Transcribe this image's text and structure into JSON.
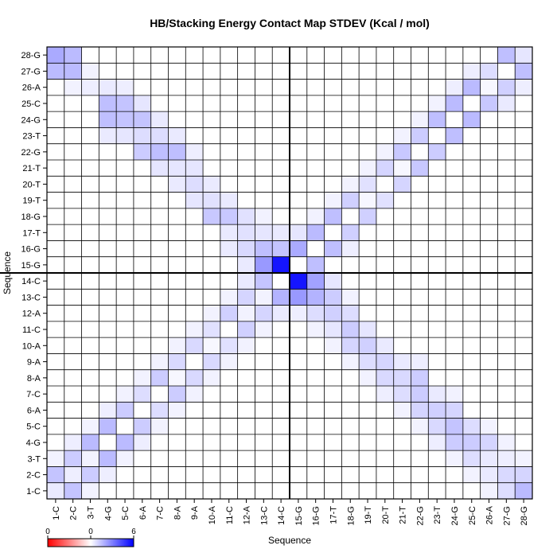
{
  "chart_data": {
    "type": "heatmap",
    "title": "HB/Stacking Energy Contact Map STDEV (Kcal / mol)",
    "xlabel": "Sequence",
    "ylabel": "Sequence",
    "labels": [
      "1-C",
      "2-C",
      "3-T",
      "4-G",
      "5-C",
      "6-A",
      "7-C",
      "8-A",
      "9-A",
      "10-A",
      "11-C",
      "12-A",
      "13-C",
      "14-C",
      "15-G",
      "16-G",
      "17-T",
      "18-G",
      "19-T",
      "20-T",
      "21-T",
      "22-G",
      "23-T",
      "24-G",
      "25-C",
      "26-A",
      "27-G",
      "28-G"
    ],
    "colorbar": {
      "ticks": [
        "0",
        "0",
        "6"
      ],
      "min": 0,
      "max": 6,
      "colors": [
        "#ff0000",
        "#ffffff",
        "#0000ff"
      ]
    },
    "crosshair": {
      "x": 14.5,
      "y": 14.5
    },
    "cells": [
      [
        1,
        1,
        0.5
      ],
      [
        1,
        2,
        1.4
      ],
      [
        1,
        3,
        0.3
      ],
      [
        1,
        27,
        1.6
      ],
      [
        1,
        28,
        2.0
      ],
      [
        2,
        2,
        0.4
      ],
      [
        2,
        1,
        1.4
      ],
      [
        2,
        3,
        1.2
      ],
      [
        2,
        4,
        0.4
      ],
      [
        2,
        26,
        0.3
      ],
      [
        2,
        27,
        1.6
      ],
      [
        2,
        28,
        1.6
      ],
      [
        3,
        1,
        0.3
      ],
      [
        3,
        2,
        1.2
      ],
      [
        3,
        3,
        0.3
      ],
      [
        3,
        4,
        1.6
      ],
      [
        3,
        5,
        0.3
      ],
      [
        3,
        26,
        0.4
      ],
      [
        3,
        27,
        0.3
      ],
      [
        4,
        2,
        0.4
      ],
      [
        4,
        3,
        1.6
      ],
      [
        4,
        5,
        1.6
      ],
      [
        4,
        6,
        0.4
      ],
      [
        4,
        23,
        0.5
      ],
      [
        4,
        24,
        1.5
      ],
      [
        4,
        25,
        1.5
      ],
      [
        4,
        26,
        0.5
      ],
      [
        5,
        3,
        0.3
      ],
      [
        5,
        4,
        1.6
      ],
      [
        5,
        6,
        1.2
      ],
      [
        5,
        7,
        0.3
      ],
      [
        5,
        23,
        0.6
      ],
      [
        5,
        24,
        1.4
      ],
      [
        5,
        25,
        1.4
      ],
      [
        5,
        26,
        0.4
      ],
      [
        6,
        4,
        0.4
      ],
      [
        6,
        5,
        1.2
      ],
      [
        6,
        7,
        0.8
      ],
      [
        6,
        8,
        0.3
      ],
      [
        6,
        22,
        1.2
      ],
      [
        6,
        23,
        0.8
      ],
      [
        6,
        24,
        1.4
      ],
      [
        6,
        25,
        0.6
      ],
      [
        7,
        5,
        0.3
      ],
      [
        7,
        6,
        0.8
      ],
      [
        7,
        8,
        1.2
      ],
      [
        7,
        9,
        0.3
      ],
      [
        7,
        21,
        0.6
      ],
      [
        7,
        22,
        1.5
      ],
      [
        7,
        23,
        0.8
      ],
      [
        7,
        24,
        0.5
      ],
      [
        8,
        6,
        0.3
      ],
      [
        8,
        7,
        1.2
      ],
      [
        8,
        8,
        0.2
      ],
      [
        8,
        9,
        0.9
      ],
      [
        8,
        10,
        0.3
      ],
      [
        8,
        20,
        0.5
      ],
      [
        8,
        21,
        0.6
      ],
      [
        8,
        22,
        1.5
      ],
      [
        8,
        23,
        0.5
      ],
      [
        9,
        7,
        0.3
      ],
      [
        9,
        8,
        0.9
      ],
      [
        9,
        10,
        0.9
      ],
      [
        9,
        11,
        0.3
      ],
      [
        9,
        19,
        0.6
      ],
      [
        9,
        20,
        0.8
      ],
      [
        9,
        21,
        0.6
      ],
      [
        9,
        22,
        0.4
      ],
      [
        10,
        8,
        0.3
      ],
      [
        10,
        9,
        0.9
      ],
      [
        10,
        10,
        0.2
      ],
      [
        10,
        11,
        0.7
      ],
      [
        10,
        12,
        0.3
      ],
      [
        10,
        18,
        1.3
      ],
      [
        10,
        19,
        0.7
      ],
      [
        10,
        20,
        0.5
      ],
      [
        11,
        9,
        0.3
      ],
      [
        11,
        10,
        0.7
      ],
      [
        11,
        12,
        1.1
      ],
      [
        11,
        13,
        0.3
      ],
      [
        11,
        16,
        0.5
      ],
      [
        11,
        17,
        0.5
      ],
      [
        11,
        18,
        1.3
      ],
      [
        11,
        19,
        0.5
      ],
      [
        12,
        10,
        0.3
      ],
      [
        12,
        11,
        1.1
      ],
      [
        12,
        12,
        0.3
      ],
      [
        12,
        13,
        1.0
      ],
      [
        12,
        14,
        0.5
      ],
      [
        12,
        15,
        0.5
      ],
      [
        12,
        16,
        0.9
      ],
      [
        12,
        17,
        0.7
      ],
      [
        12,
        18,
        0.7
      ],
      [
        13,
        11,
        0.3
      ],
      [
        13,
        12,
        1.0
      ],
      [
        13,
        13,
        0.3
      ],
      [
        13,
        14,
        1.4
      ],
      [
        13,
        15,
        2.4
      ],
      [
        13,
        16,
        1.5
      ],
      [
        13,
        17,
        0.6
      ],
      [
        13,
        18,
        0.3
      ],
      [
        14,
        12,
        0.5
      ],
      [
        14,
        13,
        1.8
      ],
      [
        14,
        15,
        5.5
      ],
      [
        14,
        16,
        1.4
      ],
      [
        14,
        17,
        0.5
      ],
      [
        15,
        12,
        0.4
      ],
      [
        15,
        13,
        2.4
      ],
      [
        15,
        14,
        5.5
      ],
      [
        15,
        16,
        2.0
      ],
      [
        15,
        17,
        0.6
      ],
      [
        16,
        11,
        0.3
      ],
      [
        16,
        12,
        0.8
      ],
      [
        16,
        13,
        1.8
      ],
      [
        16,
        14,
        2.2
      ],
      [
        16,
        15,
        1.5
      ],
      [
        16,
        17,
        1.6
      ],
      [
        16,
        18,
        0.3
      ],
      [
        17,
        10,
        0.3
      ],
      [
        17,
        11,
        0.6
      ],
      [
        17,
        12,
        1.1
      ],
      [
        17,
        13,
        1.2
      ],
      [
        17,
        14,
        0.6
      ],
      [
        17,
        16,
        1.5
      ],
      [
        17,
        18,
        1.5
      ],
      [
        17,
        19,
        0.3
      ],
      [
        18,
        9,
        0.3
      ],
      [
        18,
        10,
        1.0
      ],
      [
        18,
        11,
        1.2
      ],
      [
        18,
        12,
        0.8
      ],
      [
        18,
        13,
        0.3
      ],
      [
        18,
        16,
        0.4
      ],
      [
        18,
        17,
        1.1
      ],
      [
        18,
        19,
        1.1
      ],
      [
        18,
        20,
        0.3
      ],
      [
        19,
        8,
        0.3
      ],
      [
        19,
        9,
        0.8
      ],
      [
        19,
        10,
        1.1
      ],
      [
        19,
        11,
        0.6
      ],
      [
        19,
        18,
        1.1
      ],
      [
        19,
        19,
        0.2
      ],
      [
        19,
        20,
        0.7
      ],
      [
        19,
        21,
        0.3
      ],
      [
        20,
        7,
        0.4
      ],
      [
        20,
        8,
        0.9
      ],
      [
        20,
        9,
        1.0
      ],
      [
        20,
        10,
        0.5
      ],
      [
        20,
        19,
        0.7
      ],
      [
        20,
        21,
        1.0
      ],
      [
        20,
        22,
        0.3
      ],
      [
        21,
        6,
        0.3
      ],
      [
        21,
        7,
        0.8
      ],
      [
        21,
        8,
        0.9
      ],
      [
        21,
        9,
        0.5
      ],
      [
        21,
        20,
        1.0
      ],
      [
        21,
        21,
        0.2
      ],
      [
        21,
        22,
        1.3
      ],
      [
        21,
        23,
        0.3
      ],
      [
        22,
        5,
        0.3
      ],
      [
        22,
        6,
        1.0
      ],
      [
        22,
        7,
        1.2
      ],
      [
        22,
        8,
        1.2
      ],
      [
        22,
        9,
        0.4
      ],
      [
        22,
        21,
        1.3
      ],
      [
        22,
        23,
        1.2
      ],
      [
        22,
        24,
        0.3
      ],
      [
        23,
        4,
        0.4
      ],
      [
        23,
        5,
        0.9
      ],
      [
        23,
        6,
        1.1
      ],
      [
        23,
        7,
        0.5
      ],
      [
        23,
        22,
        1.2
      ],
      [
        23,
        24,
        1.5
      ],
      [
        23,
        25,
        0.3
      ],
      [
        24,
        3,
        0.3
      ],
      [
        24,
        4,
        1.2
      ],
      [
        24,
        5,
        1.4
      ],
      [
        24,
        6,
        1.0
      ],
      [
        24,
        7,
        0.3
      ],
      [
        24,
        23,
        1.5
      ],
      [
        24,
        25,
        1.6
      ],
      [
        24,
        26,
        0.4
      ],
      [
        25,
        2,
        0.3
      ],
      [
        25,
        3,
        0.8
      ],
      [
        25,
        4,
        1.2
      ],
      [
        25,
        5,
        0.8
      ],
      [
        25,
        24,
        1.6
      ],
      [
        25,
        26,
        1.6
      ],
      [
        25,
        27,
        0.4
      ],
      [
        26,
        1,
        0.3
      ],
      [
        26,
        2,
        0.5
      ],
      [
        26,
        3,
        0.5
      ],
      [
        26,
        4,
        1.0
      ],
      [
        26,
        5,
        0.3
      ],
      [
        26,
        25,
        1.3
      ],
      [
        26,
        26,
        0.2
      ],
      [
        26,
        27,
        0.8
      ],
      [
        27,
        1,
        0.8
      ],
      [
        27,
        2,
        0.9
      ],
      [
        27,
        3,
        0.4
      ],
      [
        27,
        4,
        0.3
      ],
      [
        27,
        25,
        0.5
      ],
      [
        27,
        26,
        1.1
      ],
      [
        27,
        28,
        1.5
      ],
      [
        28,
        1,
        1.6
      ],
      [
        28,
        2,
        1.0
      ],
      [
        28,
        3,
        0.3
      ],
      [
        28,
        26,
        0.4
      ],
      [
        28,
        27,
        1.5
      ],
      [
        28,
        28,
        0.6
      ]
    ]
  }
}
